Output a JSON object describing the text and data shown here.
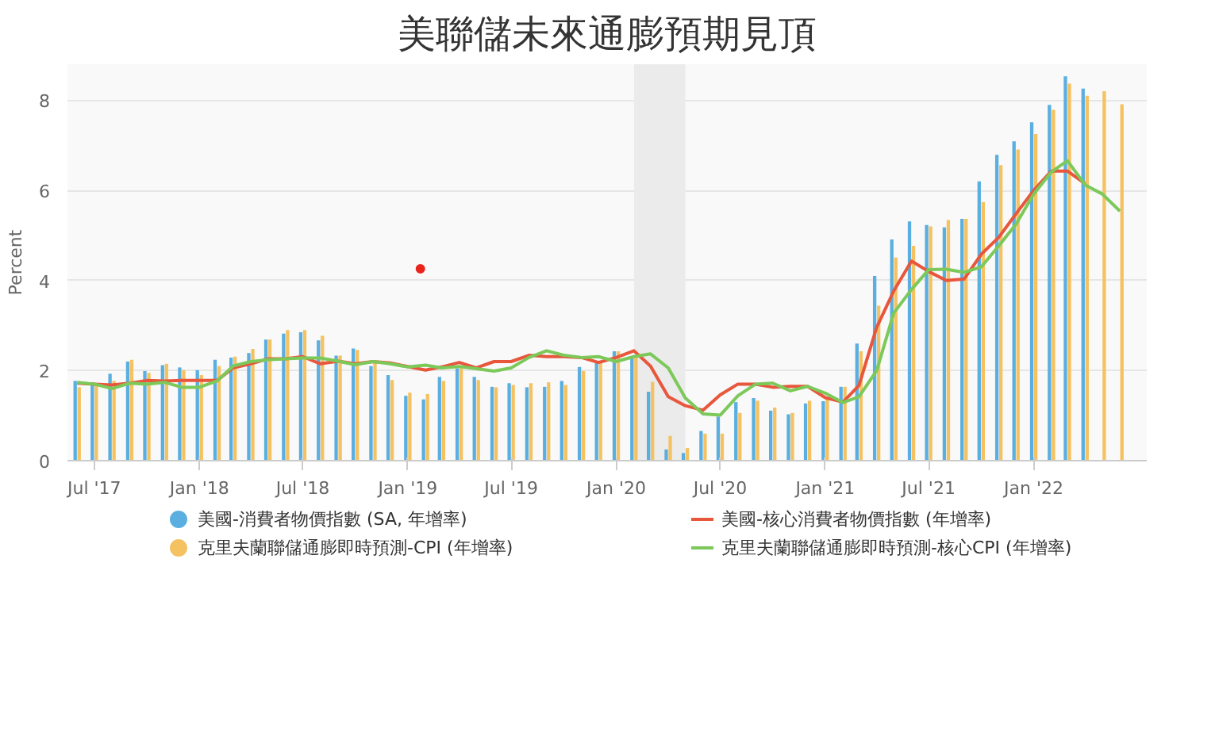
{
  "chart_data": {
    "type": "bar",
    "title": "美聯儲未來通膨預期見頂",
    "ylabel": "Percent",
    "x": [
      "2017-06",
      "2017-07",
      "2017-08",
      "2017-09",
      "2017-10",
      "2017-11",
      "2017-12",
      "2018-01",
      "2018-02",
      "2018-03",
      "2018-04",
      "2018-05",
      "2018-06",
      "2018-07",
      "2018-08",
      "2018-09",
      "2018-10",
      "2018-11",
      "2018-12",
      "2019-01",
      "2019-02",
      "2019-03",
      "2019-04",
      "2019-05",
      "2019-06",
      "2019-07",
      "2019-08",
      "2019-09",
      "2019-10",
      "2019-11",
      "2019-12",
      "2020-01",
      "2020-02",
      "2020-03",
      "2020-04",
      "2020-05",
      "2020-06",
      "2020-07",
      "2020-08",
      "2020-09",
      "2020-10",
      "2020-11",
      "2020-12",
      "2021-01",
      "2021-02",
      "2021-03",
      "2021-04",
      "2021-05",
      "2021-06",
      "2021-07",
      "2021-08",
      "2021-09",
      "2021-10",
      "2021-11",
      "2021-12",
      "2022-01",
      "2022-02",
      "2022-03",
      "2022-04",
      "2022-05",
      "2022-06"
    ],
    "series": [
      {
        "name": "美國-消費者物價指數 (SA, 年增率)",
        "color": "#5aafe0",
        "values": [
          1.77,
          1.74,
          1.93,
          2.2,
          1.99,
          2.12,
          2.07,
          2.01,
          2.24,
          2.29,
          2.39,
          2.69,
          2.82,
          2.85,
          2.67,
          2.33,
          2.49,
          2.1,
          1.9,
          1.44,
          1.36,
          1.86,
          2.05,
          1.86,
          1.64,
          1.72,
          1.63,
          1.64,
          1.77,
          2.08,
          2.2,
          2.43,
          2.3,
          1.53,
          0.25,
          0.17,
          0.66,
          0.98,
          1.3,
          1.39,
          1.11,
          1.03,
          1.27,
          1.32,
          1.64,
          2.6,
          4.1,
          4.91,
          5.31,
          5.23,
          5.18,
          5.37,
          6.2,
          6.79,
          7.09,
          7.51,
          7.9,
          8.53,
          8.26,
          null,
          null
        ]
      },
      {
        "name": "克里夫蘭聯儲通膨即時預測-CPI (年增率)",
        "color": "#f5c262",
        "values": [
          1.63,
          1.68,
          1.77,
          2.24,
          1.95,
          2.15,
          2.01,
          1.9,
          2.1,
          2.31,
          2.48,
          2.69,
          2.9,
          2.9,
          2.77,
          2.33,
          2.46,
          2.2,
          1.79,
          1.51,
          1.48,
          1.77,
          2.05,
          1.79,
          1.63,
          1.68,
          1.72,
          1.74,
          1.68,
          1.99,
          2.2,
          2.43,
          2.3,
          1.75,
          0.55,
          0.28,
          0.6,
          0.6,
          1.06,
          1.33,
          1.18,
          1.06,
          1.33,
          1.36,
          1.64,
          2.43,
          3.44,
          4.51,
          4.77,
          5.2,
          5.34,
          5.37,
          5.74,
          6.56,
          6.91,
          7.25,
          7.79,
          8.37,
          8.1,
          8.2,
          7.91
        ]
      },
      {
        "name": "美國-核心消費者物價指數 (年增率)",
        "type": "line",
        "color": "#e8563c",
        "values": [
          1.72,
          1.7,
          1.68,
          1.72,
          1.78,
          1.77,
          1.78,
          1.78,
          1.78,
          2.06,
          2.15,
          2.26,
          2.26,
          2.31,
          2.15,
          2.21,
          2.15,
          2.2,
          2.17,
          2.09,
          2.01,
          2.08,
          2.18,
          2.06,
          2.2,
          2.2,
          2.34,
          2.31,
          2.31,
          2.29,
          2.18,
          2.29,
          2.44,
          2.1,
          1.42,
          1.22,
          1.12,
          1.46,
          1.7,
          1.7,
          1.63,
          1.65,
          1.65,
          1.4,
          1.3,
          1.67,
          2.96,
          3.77,
          4.43,
          4.2,
          4.0,
          4.03,
          4.58,
          4.96,
          5.48,
          6.0,
          6.43,
          6.43,
          6.15,
          null,
          null
        ]
      },
      {
        "name": "克里夫蘭聯儲通膨即時預測-核心CPI (年增率)",
        "type": "line",
        "color": "#7cc95a",
        "values": [
          1.74,
          1.7,
          1.6,
          1.72,
          1.7,
          1.74,
          1.63,
          1.63,
          1.77,
          2.1,
          2.2,
          2.24,
          2.26,
          2.28,
          2.28,
          2.21,
          2.13,
          2.2,
          2.15,
          2.08,
          2.12,
          2.06,
          2.09,
          2.04,
          1.99,
          2.06,
          2.29,
          2.44,
          2.34,
          2.29,
          2.31,
          2.2,
          2.31,
          2.37,
          2.06,
          1.39,
          1.04,
          1.01,
          1.44,
          1.7,
          1.72,
          1.55,
          1.65,
          1.5,
          1.29,
          1.42,
          2.0,
          3.28,
          3.8,
          4.24,
          4.25,
          4.18,
          4.3,
          4.77,
          5.25,
          5.92,
          6.41,
          6.66,
          6.12,
          5.92,
          5.54
        ]
      },
      {
        "type": "scatter",
        "color": "#e8251c",
        "x": [
          "2019-01-23"
        ],
        "values": [
          4.26
        ]
      }
    ],
    "xlim": [
      "2017-05-15",
      "2022-07-18"
    ],
    "xticks": [
      {
        "value": "2017-07",
        "label": "Jul '17"
      },
      {
        "value": "2018-01",
        "label": "Jan '18"
      },
      {
        "value": "2018-07",
        "label": "Jul '18"
      },
      {
        "value": "2019-01",
        "label": "Jan '19"
      },
      {
        "value": "2019-07",
        "label": "Jul '19"
      },
      {
        "value": "2020-01",
        "label": "Jan '20"
      },
      {
        "value": "2020-07",
        "label": "Jul '20"
      },
      {
        "value": "2021-01",
        "label": "Jan '21"
      },
      {
        "value": "2021-07",
        "label": "Jul '21"
      },
      {
        "value": "2022-01",
        "label": "Jan '22"
      }
    ],
    "ylim": [
      0,
      8.8
    ],
    "yticks": [
      0,
      2,
      4,
      6,
      8
    ],
    "bands": [
      {
        "axis": "x",
        "from": "2020-02",
        "to": "2020-05",
        "color": "#ebebeb"
      }
    ],
    "grid": "y",
    "legend": "bottom"
  }
}
